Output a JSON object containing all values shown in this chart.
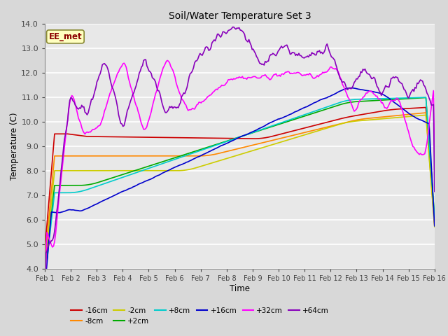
{
  "title": "Soil/Water Temperature Set 3",
  "xlabel": "Time",
  "ylabel": "Temperature (C)",
  "ylim": [
    4.0,
    14.0
  ],
  "yticks": [
    4.0,
    5.0,
    6.0,
    7.0,
    8.0,
    9.0,
    10.0,
    11.0,
    12.0,
    13.0,
    14.0
  ],
  "xtick_labels": [
    "Feb 1",
    "Feb 2",
    "Feb 3",
    "Feb 4",
    "Feb 5",
    "Feb 6",
    "Feb 7",
    "Feb 8",
    "Feb 9",
    "Feb 10",
    "Feb 11",
    "Feb 12",
    "Feb 13",
    "Feb 14",
    "Feb 15",
    "Feb 16"
  ],
  "annotation": "EE_met",
  "annotation_color": "#8B0000",
  "annotation_bg": "#FFFFC0",
  "series_order": [
    "-16cm",
    "-8cm",
    "-2cm",
    "+2cm",
    "+8cm",
    "+16cm",
    "+32cm",
    "+64cm"
  ],
  "series": {
    "-16cm": {
      "color": "#CC0000",
      "lw": 1.2
    },
    "-8cm": {
      "color": "#FF8800",
      "lw": 1.2
    },
    "-2cm": {
      "color": "#CCCC00",
      "lw": 1.2
    },
    "+2cm": {
      "color": "#00AA00",
      "lw": 1.2
    },
    "+8cm": {
      "color": "#00CCCC",
      "lw": 1.2
    },
    "+16cm": {
      "color": "#0000CC",
      "lw": 1.2
    },
    "+32cm": {
      "color": "#FF00FF",
      "lw": 1.2
    },
    "+64cm": {
      "color": "#8800BB",
      "lw": 1.2
    }
  }
}
